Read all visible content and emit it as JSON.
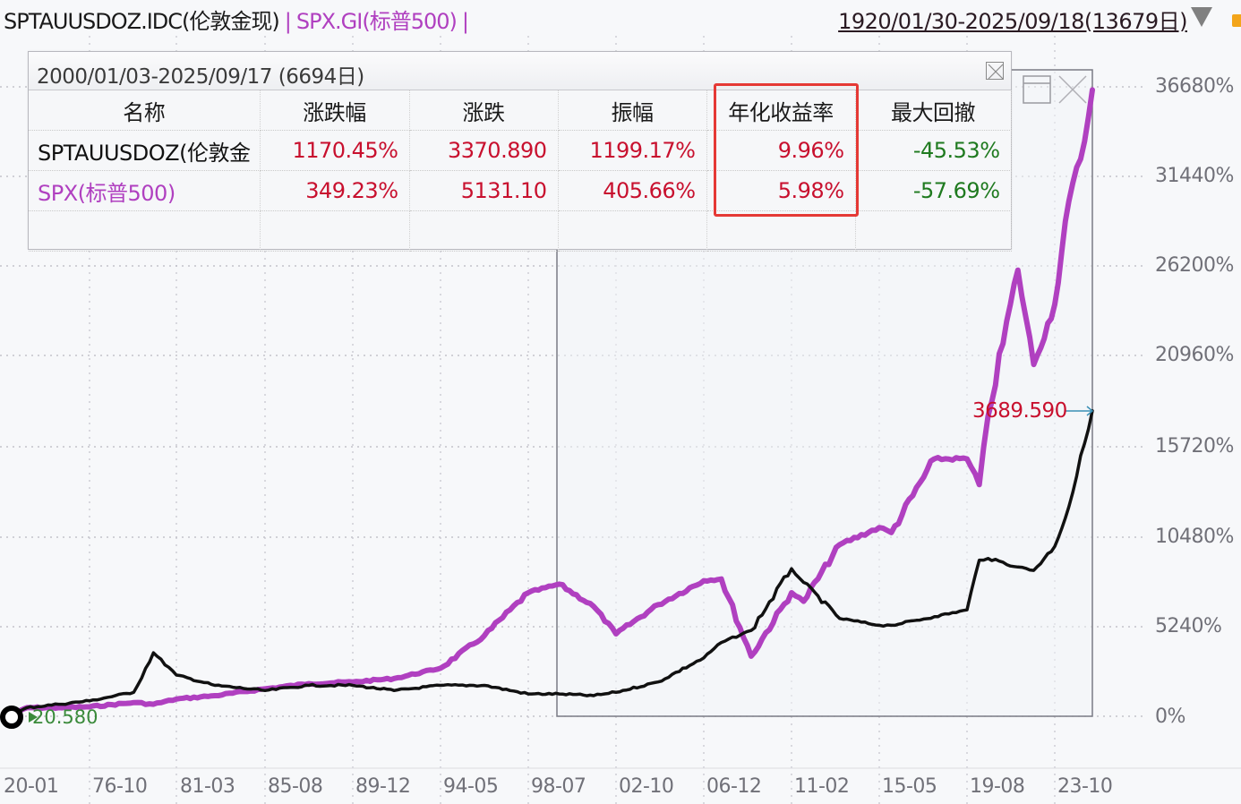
{
  "header": {
    "legend": [
      {
        "label": "SPTAUUSDOZ.IDC(伦敦金现)",
        "color": "#1a1a1a"
      },
      {
        "label": "SPX.GI(标普500)",
        "color": "#b040c0"
      }
    ],
    "separator": "|",
    "date_range": "1920/01/30-2025/09/18(13679日)",
    "dropdown_icon": "triangle-down-icon"
  },
  "stats_panel": {
    "title": "2000/01/03-2025/09/17 (6694日)",
    "close_icon": "close-box-icon",
    "columns": [
      "名称",
      "涨跌幅",
      "涨跌",
      "振幅",
      "年化收益率",
      "最大回撤"
    ],
    "rows": [
      {
        "name": "SPTAUUSDOZ(伦敦金",
        "change_pct": "1170.45%",
        "change": "3370.890",
        "amplitude": "1199.17%",
        "annualized_return": "9.96%",
        "max_drawdown": "-45.53%"
      },
      {
        "name": "SPX(标普500)",
        "change_pct": "349.23%",
        "change": "5131.10",
        "amplitude": "405.66%",
        "annualized_return": "5.98%",
        "max_drawdown": "-57.69%"
      }
    ],
    "highlighted_column": "年化收益率",
    "colors": {
      "positive": "#c8102e",
      "negative": "#1f7a1f",
      "spx": "#b040c0",
      "gold": "#111111",
      "highlight_box": "#e53935"
    }
  },
  "overlay_icons": {
    "restore": "window-restore-icon",
    "close": "close-x-icon"
  },
  "markers": {
    "end_value": "3689.590",
    "start_value": "20.580"
  },
  "chart_data": {
    "type": "line",
    "title": "SPTAUUSDOZ.IDC(伦敦金现) vs SPX.GI(标普500) 累计涨跌幅",
    "xlabel": "",
    "ylabel": "",
    "x_ticks": [
      "20-01",
      "76-10",
      "81-03",
      "85-08",
      "89-12",
      "94-05",
      "98-07",
      "02-10",
      "06-12",
      "11-02",
      "15-05",
      "19-08",
      "23-10"
    ],
    "y_ticks": [
      "0%",
      "5240%",
      "10480%",
      "15720%",
      "20960%",
      "26200%",
      "31440%",
      "36680%"
    ],
    "ylim": [
      0,
      36680
    ],
    "grid": true,
    "legend_position": "top-left",
    "selection_range": {
      "start": "2000/01/03",
      "end": "2025/09/17"
    },
    "x": [
      "1920-01",
      "1972-01",
      "1974-06",
      "1976-10",
      "1979-01",
      "1980-01",
      "1981-03",
      "1983-02",
      "1985-08",
      "1987-10",
      "1989-12",
      "1992-01",
      "1994-05",
      "1996-06",
      "1998-07",
      "2000-01",
      "2001-09",
      "2002-10",
      "2004-10",
      "2006-12",
      "2007-10",
      "2009-03",
      "2011-02",
      "2011-09",
      "2013-06",
      "2015-05",
      "2015-12",
      "2018-01",
      "2019-08",
      "2020-03",
      "2020-08",
      "2022-01",
      "2022-10",
      "2023-10",
      "2024-06",
      "2025-03",
      "2025-09"
    ],
    "series": [
      {
        "name": "SPTAUUSDOZ.IDC(伦敦金现)",
        "color": "#111111",
        "values": [
          0,
          500,
          700,
          900,
          1400,
          3700,
          2400,
          1800,
          1500,
          1800,
          1800,
          1500,
          1800,
          1800,
          1300,
          1300,
          1200,
          1400,
          2000,
          3400,
          4300,
          5000,
          8600,
          7800,
          5700,
          5300,
          5300,
          5800,
          6200,
          9100,
          9200,
          8700,
          8500,
          9900,
          12200,
          15900,
          17800
        ]
      },
      {
        "name": "SPX.GI(标普500)",
        "color": "#b040c0",
        "values": [
          0,
          500,
          500,
          550,
          800,
          700,
          1000,
          1200,
          1600,
          1900,
          2000,
          2200,
          2800,
          4700,
          7200,
          7700,
          6400,
          4800,
          6500,
          7900,
          8000,
          3500,
          7200,
          6700,
          10000,
          11000,
          10700,
          15000,
          15000,
          13500,
          17500,
          26000,
          20500,
          24000,
          30000,
          33500,
          36500
        ]
      }
    ]
  },
  "axis": {
    "y_labels": [
      "36680%",
      "31440%",
      "26200%",
      "20960%",
      "15720%",
      "10480%",
      "5240%",
      "0%"
    ],
    "x_labels": [
      "20-01",
      "76-10",
      "81-03",
      "85-08",
      "89-12",
      "94-05",
      "98-07",
      "02-10",
      "06-12",
      "11-02",
      "15-05",
      "19-08",
      "23-10"
    ]
  }
}
